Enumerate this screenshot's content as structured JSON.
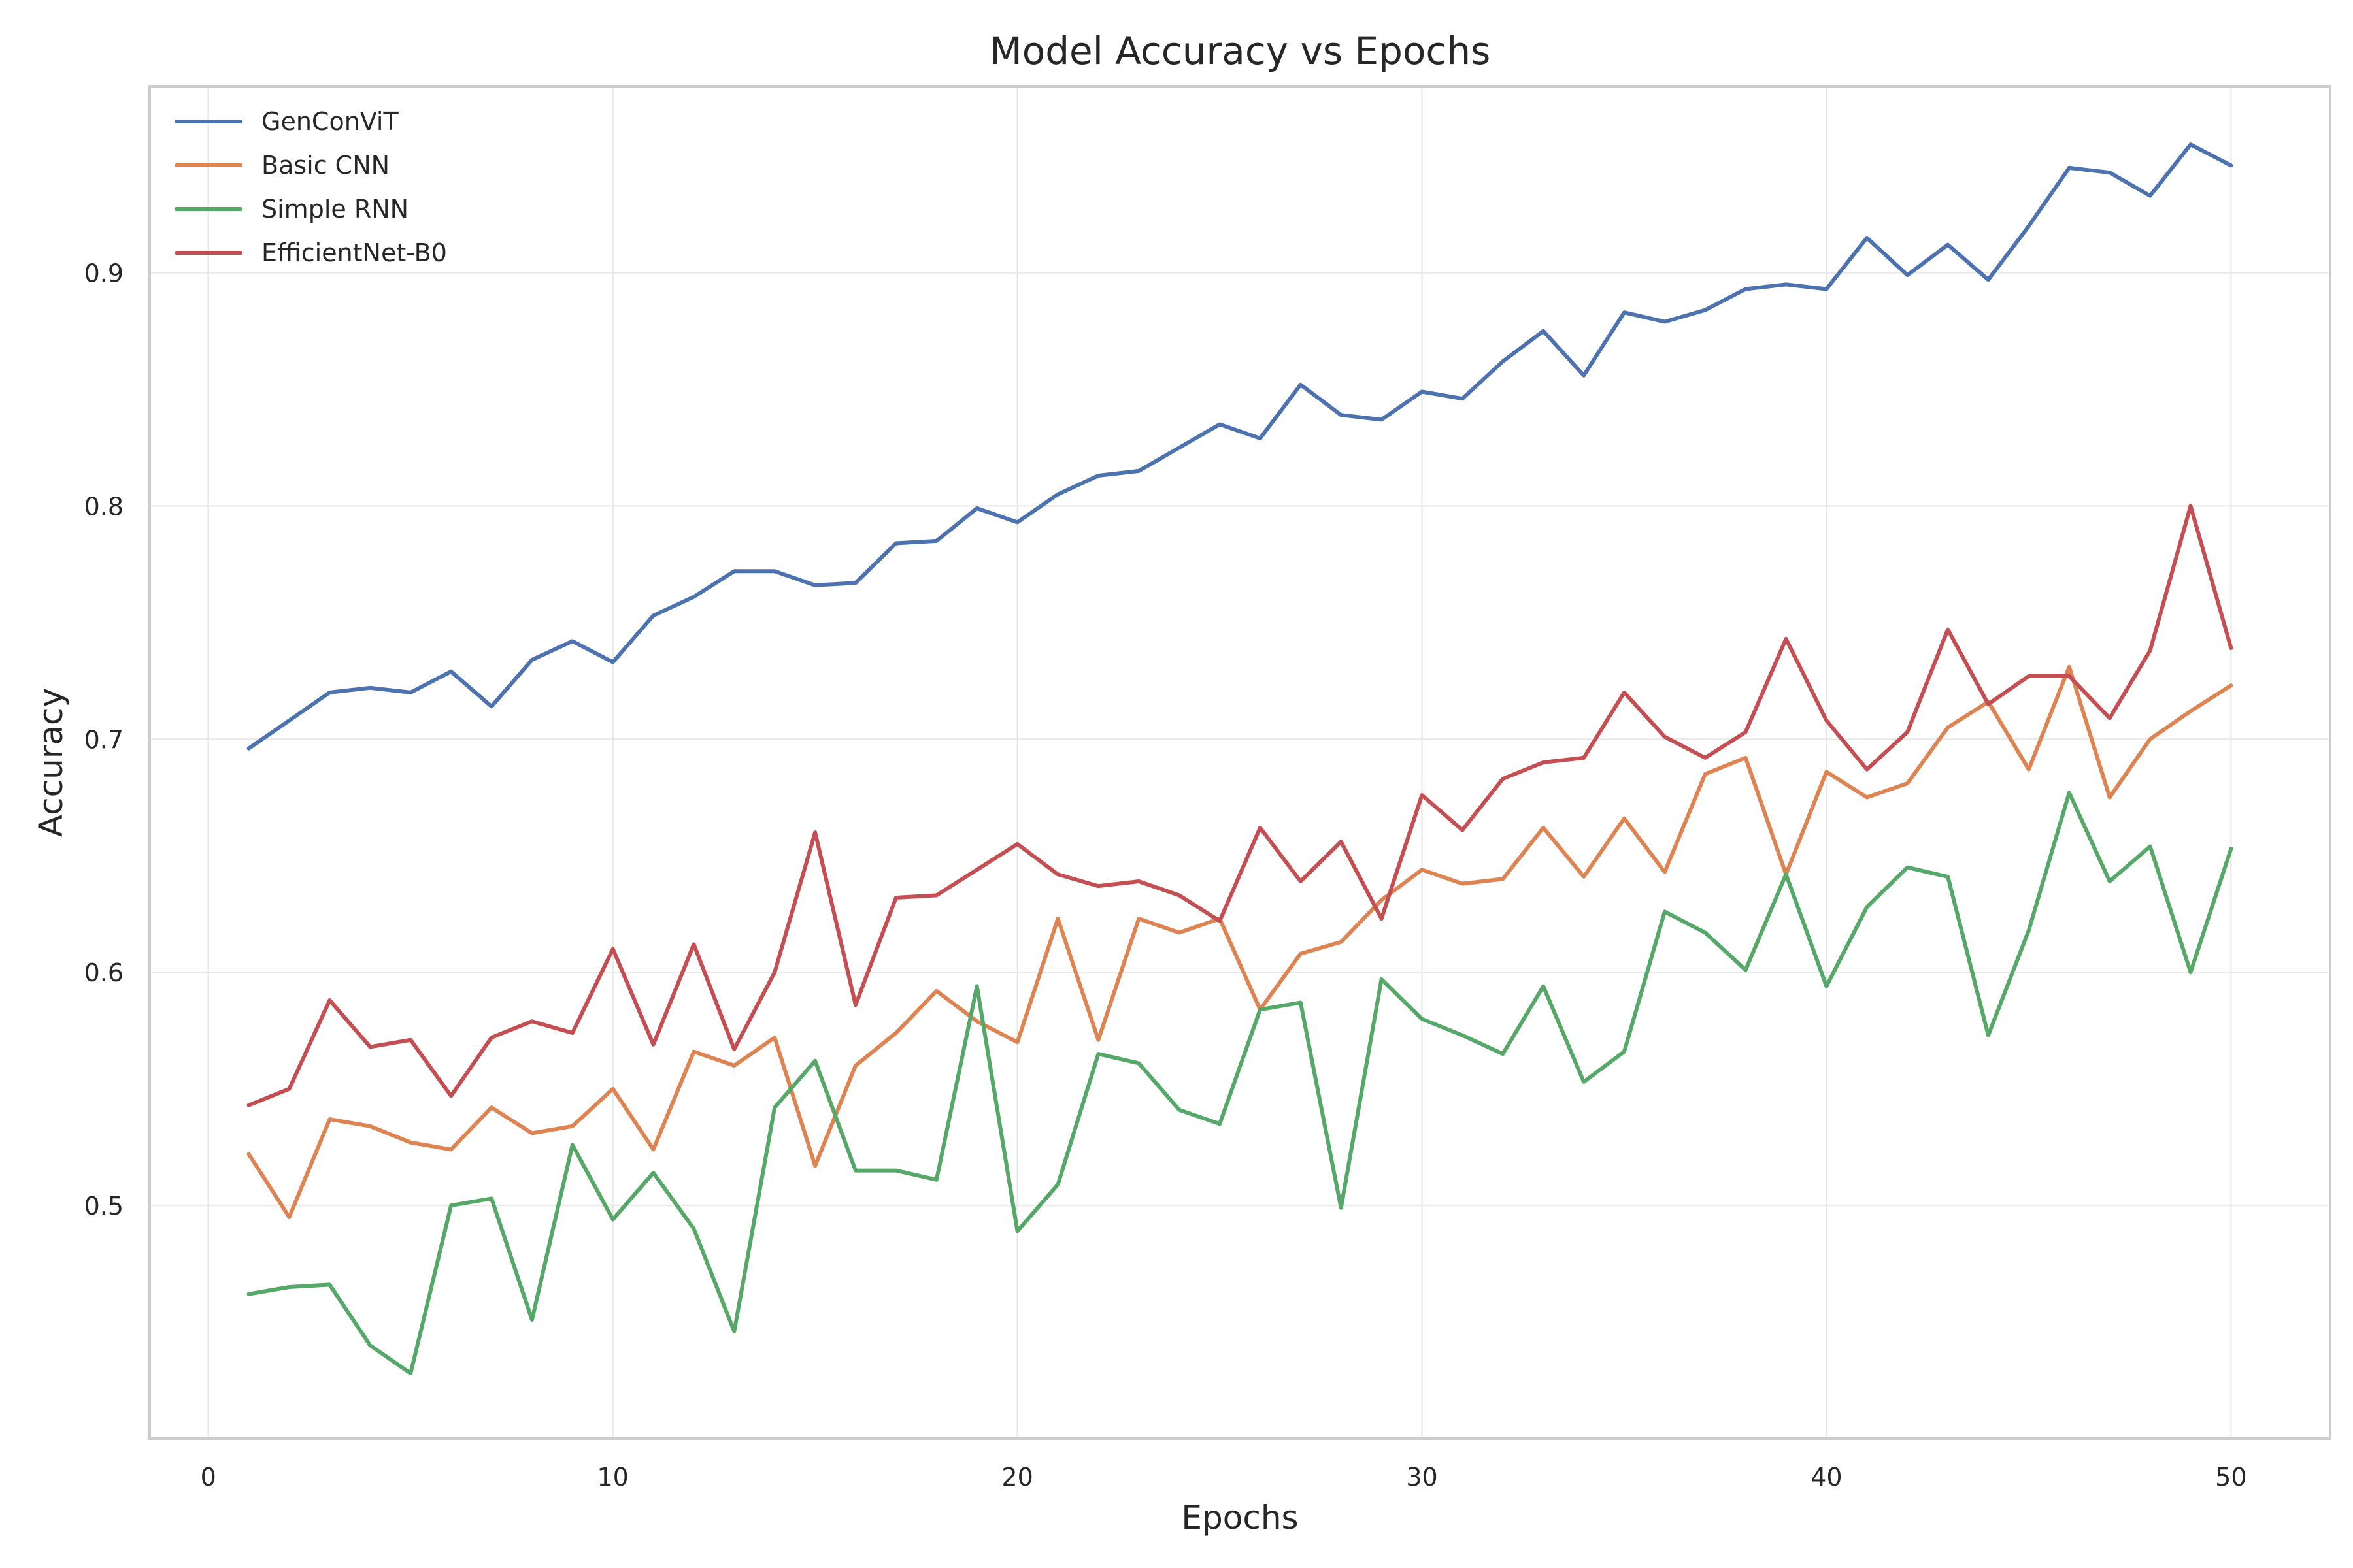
{
  "chart_data": {
    "type": "line",
    "title": "Model Accuracy vs Epochs",
    "xlabel": "Epochs",
    "ylabel": "Accuracy",
    "xlim": [
      -1.45,
      52.45
    ],
    "ylim": [
      0.4,
      0.98
    ],
    "xticks": [
      0,
      10,
      20,
      30,
      40,
      50
    ],
    "yticks": [
      0.5,
      0.6,
      0.7,
      0.8,
      0.9
    ],
    "xtick_labels": [
      "0",
      "10",
      "20",
      "30",
      "40",
      "50"
    ],
    "ytick_labels": [
      "0.5",
      "0.6",
      "0.7",
      "0.8",
      "0.9"
    ],
    "grid": true,
    "legend_position": "top-left",
    "x": [
      1,
      2,
      3,
      4,
      5,
      6,
      7,
      8,
      9,
      10,
      11,
      12,
      13,
      14,
      15,
      16,
      17,
      18,
      19,
      20,
      21,
      22,
      23,
      24,
      25,
      26,
      27,
      28,
      29,
      30,
      31,
      32,
      33,
      34,
      35,
      36,
      37,
      38,
      39,
      40,
      41,
      42,
      43,
      44,
      45,
      46,
      47,
      48,
      49,
      50
    ],
    "series": [
      {
        "name": "GenConViT",
        "color": "#4c72b0",
        "values": [
          0.696,
          0.708,
          0.72,
          0.722,
          0.72,
          0.729,
          0.714,
          0.734,
          0.742,
          0.733,
          0.753,
          0.761,
          0.772,
          0.772,
          0.766,
          0.767,
          0.784,
          0.785,
          0.799,
          0.793,
          0.805,
          0.813,
          0.815,
          0.825,
          0.835,
          0.829,
          0.852,
          0.839,
          0.837,
          0.849,
          0.846,
          0.862,
          0.875,
          0.856,
          0.883,
          0.879,
          0.884,
          0.893,
          0.895,
          0.893,
          0.915,
          0.899,
          0.912,
          0.897,
          0.92,
          0.945,
          0.943,
          0.933,
          0.955,
          0.946
        ]
      },
      {
        "name": "Basic CNN",
        "color": "#dd8452",
        "values": [
          0.522,
          0.495,
          0.537,
          0.534,
          0.527,
          0.524,
          0.542,
          0.531,
          0.534,
          0.55,
          0.524,
          0.566,
          0.56,
          0.572,
          0.517,
          0.56,
          0.574,
          0.592,
          0.579,
          0.57,
          0.623,
          0.571,
          0.623,
          0.617,
          0.623,
          0.584,
          0.608,
          0.613,
          0.631,
          0.644,
          0.638,
          0.64,
          0.662,
          0.641,
          0.666,
          0.643,
          0.685,
          0.692,
          0.642,
          0.686,
          0.675,
          0.681,
          0.705,
          0.716,
          0.687,
          0.731,
          0.675,
          0.7,
          0.712,
          0.723
        ]
      },
      {
        "name": "Simple RNN",
        "color": "#55a868",
        "values": [
          0.462,
          0.465,
          0.466,
          0.44,
          0.428,
          0.5,
          0.503,
          0.451,
          0.526,
          0.494,
          0.514,
          0.49,
          0.446,
          0.542,
          0.562,
          0.515,
          0.515,
          0.511,
          0.594,
          0.489,
          0.509,
          0.565,
          0.561,
          0.541,
          0.535,
          0.584,
          0.587,
          0.499,
          0.597,
          0.58,
          0.573,
          0.565,
          0.594,
          0.553,
          0.566,
          0.626,
          0.617,
          0.601,
          0.642,
          0.594,
          0.628,
          0.645,
          0.641,
          0.573,
          0.618,
          0.677,
          0.639,
          0.654,
          0.6,
          0.653
        ]
      },
      {
        "name": "EfficientNet-B0",
        "color": "#c44e52",
        "values": [
          0.543,
          0.55,
          0.588,
          0.568,
          0.571,
          0.547,
          0.572,
          0.579,
          0.574,
          0.61,
          0.569,
          0.612,
          0.567,
          0.6,
          0.66,
          0.586,
          0.632,
          0.633,
          0.644,
          0.655,
          0.642,
          0.637,
          0.639,
          0.633,
          0.622,
          0.662,
          0.639,
          0.656,
          0.623,
          0.676,
          0.661,
          0.683,
          0.69,
          0.692,
          0.72,
          0.701,
          0.692,
          0.703,
          0.743,
          0.708,
          0.687,
          0.703,
          0.747,
          0.715,
          0.727,
          0.727,
          0.709,
          0.738,
          0.8,
          0.739
        ]
      }
    ]
  }
}
